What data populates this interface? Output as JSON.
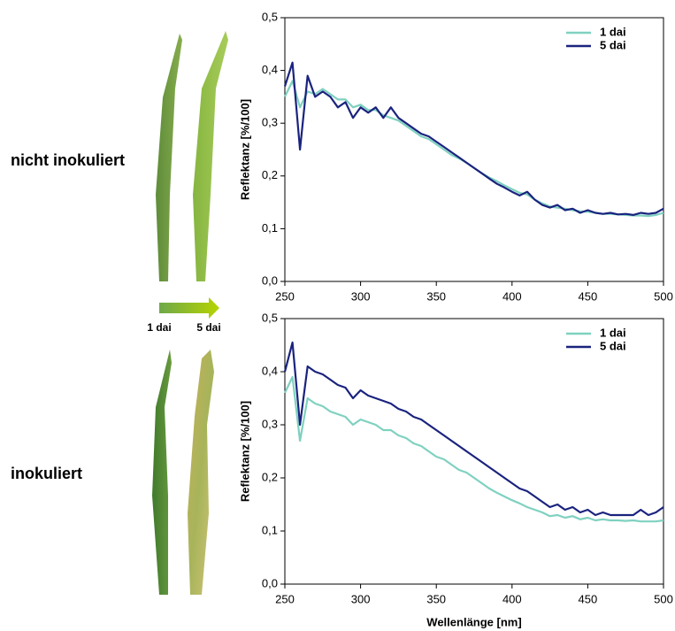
{
  "row_labels": [
    "nicht inokuliert",
    "inokuliert"
  ],
  "arrow_labels": [
    "1 dai",
    "5 dai"
  ],
  "chart_data": [
    {
      "type": "line",
      "y_label": "Reflektanz [%/100]",
      "legend": "upper right",
      "xlim": [
        250,
        500
      ],
      "xticks": [
        250,
        300,
        350,
        400,
        450,
        500
      ],
      "ylim": [
        0,
        0.5
      ],
      "yticks": [
        {
          "value": 0,
          "label": "0,0"
        },
        {
          "value": 0.1,
          "label": "0,1"
        },
        {
          "value": 0.2,
          "label": "0,2"
        },
        {
          "value": 0.3,
          "label": "0,3"
        },
        {
          "value": 0.4,
          "label": "0,4"
        },
        {
          "value": 0.5,
          "label": "0,5"
        }
      ],
      "x": [
        250,
        255,
        260,
        265,
        270,
        275,
        280,
        285,
        290,
        295,
        300,
        305,
        310,
        315,
        320,
        325,
        330,
        335,
        340,
        345,
        350,
        355,
        360,
        365,
        370,
        375,
        380,
        385,
        390,
        395,
        400,
        405,
        410,
        415,
        420,
        425,
        430,
        435,
        440,
        445,
        450,
        455,
        460,
        465,
        470,
        475,
        480,
        485,
        490,
        495,
        500
      ],
      "series": [
        {
          "name": "1 dai",
          "color": "#7fd1c0",
          "values": [
            0.35,
            0.38,
            0.33,
            0.36,
            0.355,
            0.365,
            0.355,
            0.345,
            0.345,
            0.33,
            0.335,
            0.325,
            0.325,
            0.315,
            0.31,
            0.305,
            0.295,
            0.285,
            0.275,
            0.27,
            0.26,
            0.25,
            0.24,
            0.233,
            0.225,
            0.215,
            0.205,
            0.197,
            0.19,
            0.182,
            0.175,
            0.168,
            0.165,
            0.155,
            0.148,
            0.142,
            0.14,
            0.138,
            0.135,
            0.133,
            0.132,
            0.13,
            0.128,
            0.128,
            0.127,
            0.126,
            0.125,
            0.125,
            0.124,
            0.126,
            0.13
          ]
        },
        {
          "name": "5 dai",
          "color": "#1a237e",
          "values": [
            0.37,
            0.415,
            0.25,
            0.39,
            0.35,
            0.36,
            0.35,
            0.33,
            0.34,
            0.31,
            0.33,
            0.32,
            0.33,
            0.31,
            0.33,
            0.31,
            0.3,
            0.29,
            0.28,
            0.275,
            0.265,
            0.255,
            0.245,
            0.235,
            0.225,
            0.215,
            0.205,
            0.195,
            0.185,
            0.178,
            0.17,
            0.163,
            0.17,
            0.155,
            0.145,
            0.14,
            0.145,
            0.135,
            0.138,
            0.13,
            0.135,
            0.13,
            0.128,
            0.13,
            0.127,
            0.128,
            0.126,
            0.13,
            0.128,
            0.13,
            0.138
          ]
        }
      ]
    },
    {
      "type": "line",
      "y_label": "Reflektanz [%/100]",
      "x_label": "Wellenlänge [nm]",
      "legend": "upper right",
      "xlim": [
        250,
        500
      ],
      "xticks": [
        250,
        300,
        350,
        400,
        450,
        500
      ],
      "ylim": [
        0,
        0.5
      ],
      "yticks": [
        {
          "value": 0,
          "label": "0,0"
        },
        {
          "value": 0.1,
          "label": "0,1"
        },
        {
          "value": 0.2,
          "label": "0,2"
        },
        {
          "value": 0.3,
          "label": "0,3"
        },
        {
          "value": 0.4,
          "label": "0,4"
        },
        {
          "value": 0.5,
          "label": "0,5"
        }
      ],
      "x": [
        250,
        255,
        260,
        265,
        270,
        275,
        280,
        285,
        290,
        295,
        300,
        305,
        310,
        315,
        320,
        325,
        330,
        335,
        340,
        345,
        350,
        355,
        360,
        365,
        370,
        375,
        380,
        385,
        390,
        395,
        400,
        405,
        410,
        415,
        420,
        425,
        430,
        435,
        440,
        445,
        450,
        455,
        460,
        465,
        470,
        475,
        480,
        485,
        490,
        495,
        500
      ],
      "series": [
        {
          "name": "1 dai",
          "color": "#7fd1c0",
          "values": [
            0.36,
            0.39,
            0.27,
            0.35,
            0.34,
            0.335,
            0.325,
            0.32,
            0.315,
            0.3,
            0.31,
            0.305,
            0.3,
            0.29,
            0.29,
            0.28,
            0.275,
            0.265,
            0.26,
            0.25,
            0.24,
            0.235,
            0.225,
            0.215,
            0.21,
            0.2,
            0.19,
            0.18,
            0.172,
            0.165,
            0.158,
            0.152,
            0.145,
            0.14,
            0.135,
            0.128,
            0.13,
            0.125,
            0.128,
            0.122,
            0.125,
            0.12,
            0.122,
            0.12,
            0.12,
            0.119,
            0.12,
            0.118,
            0.118,
            0.118,
            0.12
          ]
        },
        {
          "name": "5 dai",
          "color": "#1a237e",
          "values": [
            0.4,
            0.455,
            0.3,
            0.41,
            0.4,
            0.395,
            0.385,
            0.375,
            0.37,
            0.35,
            0.365,
            0.355,
            0.35,
            0.345,
            0.34,
            0.33,
            0.325,
            0.315,
            0.31,
            0.3,
            0.29,
            0.28,
            0.27,
            0.26,
            0.25,
            0.24,
            0.23,
            0.22,
            0.21,
            0.2,
            0.19,
            0.18,
            0.175,
            0.165,
            0.155,
            0.145,
            0.15,
            0.14,
            0.145,
            0.135,
            0.14,
            0.13,
            0.135,
            0.13,
            0.13,
            0.13,
            0.13,
            0.14,
            0.13,
            0.135,
            0.145
          ]
        }
      ]
    }
  ]
}
